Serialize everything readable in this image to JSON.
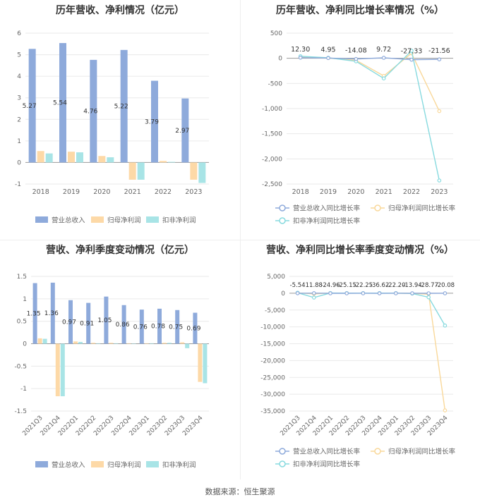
{
  "source": "数据来源：恒生聚源",
  "colors": {
    "revenue": "#8eaadb",
    "parent": "#fdd9a7",
    "deducted": "#a8e4e6",
    "line_revenue": "#8eaadb",
    "line_parent": "#f9d89a",
    "line_deducted": "#87dadf"
  },
  "chart_data": [
    {
      "type": "bar",
      "title": "历年营收、净利情况（亿元）",
      "categories": [
        "2018",
        "2019",
        "2020",
        "2021",
        "2022",
        "2023"
      ],
      "ylim": [
        -1,
        6
      ],
      "yticks": [
        -1,
        0,
        1,
        2,
        3,
        4,
        5,
        6
      ],
      "series": [
        {
          "name": "营业总收入",
          "values": [
            5.27,
            5.54,
            4.76,
            5.22,
            3.79,
            2.97
          ],
          "labels": [
            "5.27",
            "5.54",
            "4.76",
            "5.22",
            "3.79",
            "2.97"
          ]
        },
        {
          "name": "归母净利润",
          "values": [
            0.53,
            0.5,
            0.3,
            -0.8,
            0.07,
            -0.8
          ]
        },
        {
          "name": "扣非净利润",
          "values": [
            0.42,
            0.47,
            0.24,
            -0.8,
            0.03,
            -0.95
          ]
        }
      ]
    },
    {
      "type": "line",
      "title": "历年营收、净利同比增长率情况（%）",
      "categories": [
        "2018",
        "2019",
        "2020",
        "2021",
        "2022",
        "2023"
      ],
      "ylim": [
        -2500,
        500
      ],
      "yticks": [
        500,
        0,
        -500,
        -1000,
        -1500,
        -2000,
        -2500
      ],
      "ytick_labels": [
        "500",
        "0",
        "-500",
        "-1,000",
        "-1,500",
        "-2,000",
        "-2,500"
      ],
      "series": [
        {
          "name": "营业总收入同比增长率",
          "values": [
            12.3,
            4.95,
            -14.08,
            9.72,
            -27.33,
            -21.56
          ],
          "labels": [
            "12.30",
            "4.95",
            "-14.08",
            "9.72",
            "-27.33",
            "-21.56"
          ]
        },
        {
          "name": "归母净利润同比增长率",
          "values": [
            20,
            5,
            -40,
            -350,
            100,
            -1050
          ]
        },
        {
          "name": "扣非净利润同比增长率",
          "values": [
            40,
            10,
            -60,
            -400,
            150,
            -2430
          ]
        }
      ]
    },
    {
      "type": "bar",
      "title": "营收、净利季度变动情况（亿元）",
      "categories": [
        "2021Q3",
        "2021Q4",
        "2022Q1",
        "2022Q2",
        "2022Q3",
        "2022Q4",
        "2023Q1",
        "2023Q2",
        "2023Q3",
        "2023Q4"
      ],
      "ylim": [
        -1.5,
        1.5
      ],
      "yticks": [
        1.5,
        1,
        0.5,
        0,
        -0.5,
        -1,
        -1.5
      ],
      "series": [
        {
          "name": "营业总收入",
          "values": [
            1.35,
            1.36,
            0.97,
            0.91,
            1.05,
            0.86,
            0.76,
            0.78,
            0.75,
            0.69
          ],
          "labels": [
            "1.35",
            "1.36",
            "0.97",
            "0.91",
            "1.05",
            "0.86",
            "0.76",
            "0.78",
            "0.75",
            "0.69"
          ]
        },
        {
          "name": "归母净利润",
          "values": [
            0.12,
            -1.17,
            0.05,
            0.02,
            0.02,
            0.01,
            0.01,
            0.02,
            0.03,
            -0.85
          ]
        },
        {
          "name": "扣非净利润",
          "values": [
            0.11,
            -1.17,
            0.04,
            0.01,
            0.01,
            0.0,
            0.01,
            0.02,
            -0.1,
            -0.88
          ]
        }
      ]
    },
    {
      "type": "line",
      "title": "营收、净利同比增长率季度变动情况（%）",
      "categories": [
        "2021Q3",
        "2021Q4",
        "2022Q1",
        "2022Q2",
        "2022Q3",
        "2022Q4",
        "2023Q1",
        "2023Q2",
        "2023Q3",
        "2023Q4"
      ],
      "ylim": [
        -35000,
        5000
      ],
      "yticks": [
        5000,
        0,
        -5000,
        -10000,
        -15000,
        -20000,
        -25000,
        -30000,
        -35000
      ],
      "ytick_labels": [
        "5,000",
        "0",
        "-5,000",
        "-10,000",
        "-15,000",
        "-20,000",
        "-25,000",
        "-30,000",
        "-35,000"
      ],
      "series": [
        {
          "name": "营业总收入同比增长率",
          "values": [
            -5.54,
            11.88,
            -24.96,
            -25.15,
            -22.25,
            -36.62,
            -22.2,
            -13.94,
            -28.77,
            -20.08
          ],
          "labels": [
            "-5.54",
            "11.88",
            "-24.96",
            "-25.15",
            "-22.25",
            "-36.62",
            "-22.20",
            "-13.94",
            "-28.77",
            "-20.08"
          ]
        },
        {
          "name": "归母净利润同比增长率",
          "values": [
            100,
            -200,
            30,
            20,
            20,
            20,
            20,
            -50,
            -300,
            -34800
          ]
        },
        {
          "name": "扣非净利润同比增长率",
          "values": [
            150,
            -1300,
            50,
            30,
            30,
            30,
            30,
            -100,
            -1200,
            -9600
          ]
        }
      ]
    }
  ]
}
